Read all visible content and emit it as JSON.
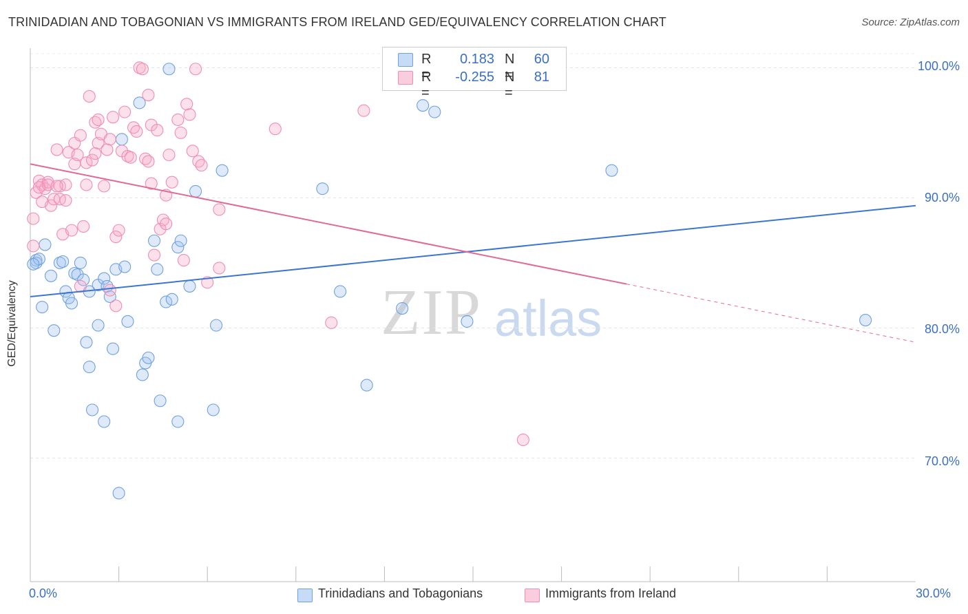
{
  "title": "TRINIDADIAN AND TOBAGONIAN VS IMMIGRANTS FROM IRELAND GED/EQUIVALENCY CORRELATION CHART",
  "source": "Source: ZipAtlas.com",
  "watermark": {
    "zip": "ZIP",
    "atlas": "atlas"
  },
  "legend": {
    "r_label": "R =",
    "n_label": "N =",
    "rows": [
      {
        "r": "0.183",
        "n": "60",
        "color": "#6fa0e0"
      },
      {
        "r": "-0.255",
        "n": "81",
        "color": "#f08db0"
      }
    ]
  },
  "bottom_legend": [
    {
      "label": "Trinidadians and Tobagonians",
      "color": "#6fa0e0"
    },
    {
      "label": "Immigrants from Ireland",
      "color": "#f08db0"
    }
  ],
  "colors": {
    "blue": "#3a76d0",
    "pink": "#e06a94",
    "blue_fill": "rgba(160,196,240,0.35)",
    "pink_fill": "rgba(245,170,200,0.35)"
  },
  "chart_data": {
    "type": "scatter",
    "title": "TRINIDADIAN AND TOBAGONIAN VS IMMIGRANTS FROM IRELAND GED/EQUIVALENCY CORRELATION CHART",
    "xlabel": "",
    "ylabel": "GED/Equivalency",
    "xlim": [
      0,
      30
    ],
    "ylim": [
      60.5,
      101.5
    ],
    "x_tick_labels": [
      "0.0%",
      "30.0%"
    ],
    "y_ticks": [
      70,
      80,
      90,
      100
    ],
    "y_tick_labels": [
      "70.0%",
      "80.0%",
      "90.0%",
      "100.0%"
    ],
    "grid": true,
    "legend_position": "top-center",
    "series": [
      {
        "name": "Trinidadians and Tobagonians",
        "color": "#6fa0e0",
        "trend": {
          "x0": 0,
          "y0": 82.4,
          "x1": 30,
          "y1": 89.4,
          "dashed_from": null
        },
        "points": [
          [
            0.2,
            85.2
          ],
          [
            0.2,
            85.0
          ],
          [
            0.3,
            85.3
          ],
          [
            0.4,
            81.6
          ],
          [
            0.5,
            86.4
          ],
          [
            0.7,
            84.0
          ],
          [
            0.8,
            79.8
          ],
          [
            1.0,
            85.0
          ],
          [
            1.1,
            85.1
          ],
          [
            1.2,
            82.8
          ],
          [
            1.3,
            82.3
          ],
          [
            1.4,
            81.9
          ],
          [
            1.5,
            84.2
          ],
          [
            1.6,
            84.1
          ],
          [
            1.7,
            85.0
          ],
          [
            1.8,
            83.7
          ],
          [
            1.9,
            78.9
          ],
          [
            2.0,
            82.8
          ],
          [
            2.0,
            77.0
          ],
          [
            2.1,
            73.7
          ],
          [
            2.3,
            80.2
          ],
          [
            2.3,
            83.3
          ],
          [
            2.5,
            83.8
          ],
          [
            2.5,
            72.8
          ],
          [
            2.6,
            83.2
          ],
          [
            2.7,
            82.4
          ],
          [
            2.8,
            78.4
          ],
          [
            2.9,
            84.5
          ],
          [
            3.0,
            67.3
          ],
          [
            3.1,
            94.5
          ],
          [
            3.2,
            84.7
          ],
          [
            3.3,
            80.5
          ],
          [
            3.7,
            97.3
          ],
          [
            3.8,
            76.4
          ],
          [
            3.9,
            77.3
          ],
          [
            4.0,
            77.7
          ],
          [
            4.2,
            86.7
          ],
          [
            4.3,
            84.5
          ],
          [
            4.4,
            74.4
          ],
          [
            4.6,
            82.0
          ],
          [
            4.7,
            99.9
          ],
          [
            4.8,
            82.2
          ],
          [
            5.0,
            72.8
          ],
          [
            5.0,
            86.2
          ],
          [
            5.1,
            86.7
          ],
          [
            5.4,
            83.2
          ],
          [
            5.6,
            90.5
          ],
          [
            6.2,
            73.7
          ],
          [
            6.3,
            80.2
          ],
          [
            6.5,
            92.1
          ],
          [
            9.9,
            90.7
          ],
          [
            10.5,
            82.8
          ],
          [
            11.4,
            75.6
          ],
          [
            12.6,
            81.5
          ],
          [
            13.3,
            97.1
          ],
          [
            13.7,
            96.6
          ],
          [
            14.8,
            80.5
          ],
          [
            19.7,
            92.1
          ],
          [
            28.3,
            80.6
          ],
          [
            0.1,
            84.9
          ]
        ]
      },
      {
        "name": "Immigrants from Ireland",
        "color": "#f08db0",
        "trend": {
          "x0": 0,
          "y0": 92.6,
          "x1": 30,
          "y1": 78.9,
          "dashed_from": 20.2
        },
        "points": [
          [
            0.1,
            88.4
          ],
          [
            0.1,
            86.3
          ],
          [
            0.2,
            90.4
          ],
          [
            0.3,
            91.3
          ],
          [
            0.4,
            91.0
          ],
          [
            0.5,
            90.7
          ],
          [
            0.6,
            91.2
          ],
          [
            0.7,
            89.4
          ],
          [
            0.8,
            89.9
          ],
          [
            0.9,
            93.7
          ],
          [
            1.0,
            90.9
          ],
          [
            1.0,
            89.9
          ],
          [
            1.1,
            87.2
          ],
          [
            1.2,
            89.8
          ],
          [
            1.3,
            93.5
          ],
          [
            1.4,
            87.5
          ],
          [
            1.5,
            92.6
          ],
          [
            1.5,
            94.2
          ],
          [
            1.6,
            93.3
          ],
          [
            1.7,
            94.8
          ],
          [
            1.8,
            87.8
          ],
          [
            1.9,
            91.0
          ],
          [
            1.9,
            92.7
          ],
          [
            2.0,
            97.8
          ],
          [
            2.1,
            92.9
          ],
          [
            2.2,
            95.8
          ],
          [
            2.3,
            96.0
          ],
          [
            2.3,
            94.2
          ],
          [
            2.4,
            94.9
          ],
          [
            2.5,
            90.9
          ],
          [
            2.6,
            93.7
          ],
          [
            2.7,
            94.5
          ],
          [
            2.7,
            82.9
          ],
          [
            2.8,
            96.2
          ],
          [
            2.9,
            87.0
          ],
          [
            3.0,
            87.5
          ],
          [
            3.1,
            93.6
          ],
          [
            3.2,
            96.6
          ],
          [
            3.3,
            93.2
          ],
          [
            3.5,
            95.4
          ],
          [
            3.6,
            95.1
          ],
          [
            3.7,
            100.0
          ],
          [
            3.8,
            99.9
          ],
          [
            3.9,
            93.0
          ],
          [
            4.0,
            92.8
          ],
          [
            4.0,
            97.9
          ],
          [
            4.1,
            95.6
          ],
          [
            4.2,
            85.6
          ],
          [
            4.3,
            95.2
          ],
          [
            4.4,
            87.6
          ],
          [
            4.5,
            88.3
          ],
          [
            4.6,
            90.2
          ],
          [
            4.6,
            88.0
          ],
          [
            4.7,
            93.3
          ],
          [
            4.8,
            91.2
          ],
          [
            5.0,
            96.0
          ],
          [
            5.1,
            95.0
          ],
          [
            5.2,
            85.2
          ],
          [
            5.3,
            97.2
          ],
          [
            5.4,
            96.4
          ],
          [
            5.5,
            93.6
          ],
          [
            5.6,
            99.9
          ],
          [
            5.7,
            92.8
          ],
          [
            5.8,
            92.5
          ],
          [
            6.0,
            83.5
          ],
          [
            6.4,
            89.1
          ],
          [
            6.4,
            84.6
          ],
          [
            8.3,
            95.3
          ],
          [
            10.2,
            80.4
          ],
          [
            11.3,
            96.7
          ],
          [
            16.7,
            71.4
          ],
          [
            1.7,
            83.2
          ],
          [
            2.9,
            81.7
          ],
          [
            0.6,
            91.0
          ],
          [
            1.2,
            91.0
          ],
          [
            0.9,
            90.9
          ],
          [
            2.2,
            93.4
          ],
          [
            3.4,
            93.1
          ],
          [
            4.1,
            91.1
          ],
          [
            0.3,
            90.8
          ],
          [
            0.4,
            89.7
          ]
        ]
      }
    ]
  }
}
